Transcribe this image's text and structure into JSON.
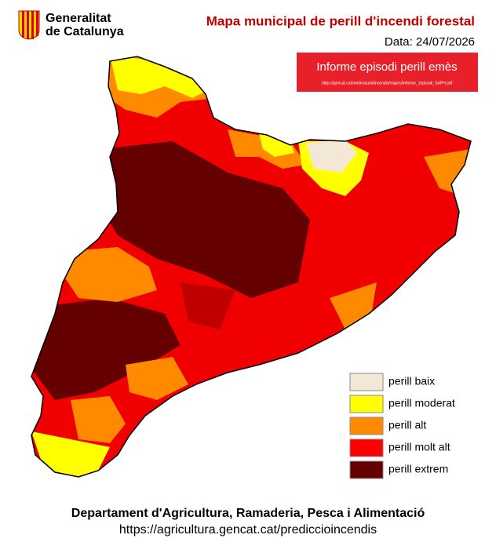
{
  "header": {
    "logo_lines": [
      "Generalitat",
      "de Catalunya"
    ],
    "title": "Mapa municipal de perill d'incendi forestal",
    "date": "Data: 24/07/2026"
  },
  "banner": {
    "text": "Informe episodi perill emès",
    "link": "https://gencat.cat/medinatural/incendis/mapes/Informe_1episodi_SAPH.pdf"
  },
  "legend": [
    {
      "label": "perill baix",
      "color": "#f3e8d6"
    },
    {
      "label": "perill moderat",
      "color": "#ffff00"
    },
    {
      "label": "perill alt",
      "color": "#ff8a00"
    },
    {
      "label": "perill molt alt",
      "color": "#ff0000"
    },
    {
      "label": "perill extrem",
      "color": "#650000"
    }
  ],
  "footer": {
    "department": "Departament d'Agricultura, Ramaderia, Pesca i Alimentació",
    "url": "https://agricultura.gencat.cat/prediccioincendis"
  }
}
